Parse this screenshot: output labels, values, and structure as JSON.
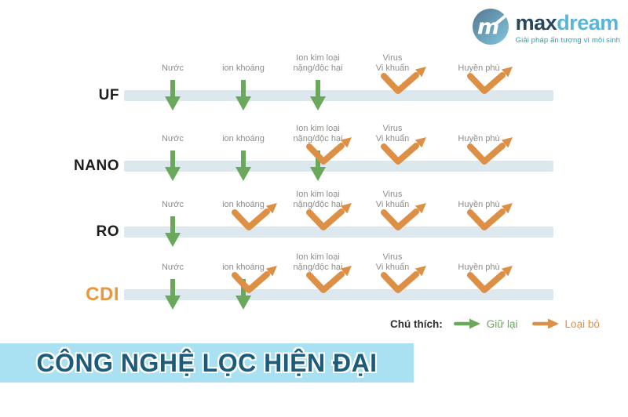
{
  "logo": {
    "brand_max": "max",
    "brand_dream": "dream",
    "tagline": "Giải pháp ấn tượng vì môi sinh"
  },
  "column_labels": [
    "Nước",
    "ion khoáng",
    "Ion kim loại\nnặng/độc hại",
    "Virus\nVi khuẩn",
    "Huyền phù"
  ],
  "rows": [
    {
      "label": "UF",
      "actions": [
        "keep",
        "keep",
        "keep",
        "remove",
        "remove"
      ]
    },
    {
      "label": "NANO",
      "actions": [
        "keep",
        "keep",
        "keep-remove",
        "remove",
        "remove"
      ]
    },
    {
      "label": "RO",
      "actions": [
        "keep",
        "remove",
        "remove",
        "remove",
        "remove"
      ]
    },
    {
      "label": "CDI",
      "actions": [
        "keep",
        "keep-remove",
        "remove",
        "remove",
        "remove"
      ]
    }
  ],
  "legend": {
    "title": "Chú thích:",
    "keep_label": "Giữ lại",
    "remove_label": "Loại bỏ"
  },
  "banner": {
    "text": "CÔNG NGHỆ LỌC HIỆN ĐẠI"
  },
  "colors": {
    "keep_green": "#6aa85c",
    "remove_orange": "#dd9045",
    "bar_blue": "#dde8ee",
    "label_gray": "#8d8d89",
    "cdi_orange": "#e8973f",
    "banner_bg": "#a9e0f2",
    "banner_text": "#1c5b7c",
    "brand_navy": "#26475e",
    "brand_blue": "#59b5d8",
    "brand_teal": "#2ba0b4"
  }
}
